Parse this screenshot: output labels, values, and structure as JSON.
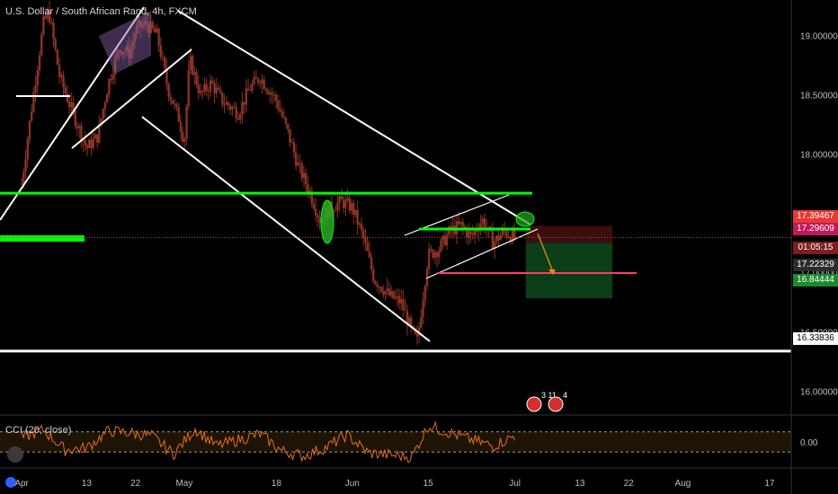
{
  "header": {
    "symbol_title": "U.S. Dollar / South African Rand, 4h, FXCM"
  },
  "indicator": {
    "title": "CCI (20, close)",
    "zero_label": "0.00"
  },
  "price_labels": {
    "high_box": "17.39467",
    "current": "17.29609",
    "countdown": "01:05:15",
    "mid": "17.22329",
    "target": "16.84444",
    "support": "16.33836"
  },
  "events": {
    "badge_a": "3",
    "badge_b": "11",
    "badge_c": "4"
  },
  "colors": {
    "background": "#000000",
    "candle": "#8a3324",
    "channel": "#ffffff",
    "resistance": "#00ff00",
    "target_line": "#ff3b6b",
    "cci_line": "#e56e1e",
    "stop_zone": "#3b0d0d",
    "profit_zone": "#0b3d16"
  },
  "chart_data": {
    "type": "line",
    "title": "U.S. Dollar / South African Rand, 4h, FXCM",
    "xlabel": "",
    "ylabel": "",
    "ylim": [
      15.8,
      19.3
    ],
    "y_ticks": [
      "19.00000",
      "18.50000",
      "18.00000",
      "17.50000",
      "17.00000",
      "16.50000",
      "16.00000"
    ],
    "x_ticks": [
      "Apr",
      "13",
      "22",
      "May",
      "18",
      "Jun",
      "15",
      "Jul",
      "13",
      "22",
      "Aug",
      "17"
    ],
    "x_tick_dates": [
      "2020-04-01",
      "2020-04-13",
      "2020-04-22",
      "2020-05-01",
      "2020-05-18",
      "2020-06-01",
      "2020-06-15",
      "2020-07-01",
      "2020-07-13",
      "2020-07-22",
      "2020-08-01",
      "2020-08-17"
    ],
    "series": [
      {
        "points": [
          [
            "2020-04-01",
            17.75
          ],
          [
            "2020-04-03",
            18.45
          ],
          [
            "2020-04-05",
            19.1
          ],
          [
            "2020-04-06",
            19.2
          ],
          [
            "2020-04-08",
            18.65
          ],
          [
            "2020-04-10",
            18.4
          ],
          [
            "2020-04-13",
            18.05
          ],
          [
            "2020-04-15",
            18.15
          ],
          [
            "2020-04-17",
            18.6
          ],
          [
            "2020-04-19",
            18.9
          ],
          [
            "2020-04-21",
            18.85
          ],
          [
            "2020-04-22",
            19.05
          ],
          [
            "2020-04-24",
            19.1
          ],
          [
            "2020-04-26",
            19.0
          ],
          [
            "2020-04-28",
            18.55
          ],
          [
            "2020-04-30",
            18.3
          ],
          [
            "2020-05-01",
            18.1
          ],
          [
            "2020-05-02",
            18.8
          ],
          [
            "2020-05-04",
            18.5
          ],
          [
            "2020-05-06",
            18.6
          ],
          [
            "2020-05-08",
            18.45
          ],
          [
            "2020-05-11",
            18.35
          ],
          [
            "2020-05-13",
            18.55
          ],
          [
            "2020-05-15",
            18.65
          ],
          [
            "2020-05-18",
            18.45
          ],
          [
            "2020-05-20",
            18.2
          ],
          [
            "2020-05-22",
            17.9
          ],
          [
            "2020-05-24",
            17.7
          ],
          [
            "2020-05-26",
            17.45
          ],
          [
            "2020-05-28",
            17.55
          ],
          [
            "2020-05-30",
            17.6
          ],
          [
            "2020-06-01",
            17.55
          ],
          [
            "2020-06-03",
            17.3
          ],
          [
            "2020-06-05",
            16.95
          ],
          [
            "2020-06-08",
            16.8
          ],
          [
            "2020-06-10",
            16.75
          ],
          [
            "2020-06-12",
            16.5
          ],
          [
            "2020-06-13",
            16.42
          ],
          [
            "2020-06-15",
            17.15
          ],
          [
            "2020-06-17",
            17.2
          ],
          [
            "2020-06-19",
            17.35
          ],
          [
            "2020-06-21",
            17.4
          ],
          [
            "2020-06-23",
            17.3
          ],
          [
            "2020-06-25",
            17.45
          ],
          [
            "2020-06-27",
            17.25
          ],
          [
            "2020-06-29",
            17.35
          ],
          [
            "2020-07-01",
            17.29
          ]
        ]
      }
    ],
    "annotations": {
      "resistance_level": 17.67,
      "current_price": 17.29609,
      "stop_level": 17.39467,
      "target_level": 16.84444,
      "support_level": 16.33836
    },
    "cci": {
      "title": "CCI (20, close)",
      "levels": [
        100,
        0,
        -100
      ],
      "ylim": [
        -250,
        250
      ],
      "values": [
        [
          "2020-04-01",
          40
        ],
        [
          "2020-04-05",
          120
        ],
        [
          "2020-04-09",
          -80
        ],
        [
          "2020-04-13",
          -60
        ],
        [
          "2020-04-17",
          110
        ],
        [
          "2020-04-21",
          90
        ],
        [
          "2020-04-25",
          60
        ],
        [
          "2020-04-29",
          -120
        ],
        [
          "2020-05-03",
          130
        ],
        [
          "2020-05-07",
          -40
        ],
        [
          "2020-05-11",
          20
        ],
        [
          "2020-05-15",
          80
        ],
        [
          "2020-05-19",
          -90
        ],
        [
          "2020-05-23",
          -140
        ],
        [
          "2020-05-27",
          -60
        ],
        [
          "2020-05-31",
          70
        ],
        [
          "2020-06-04",
          -110
        ],
        [
          "2020-06-08",
          -130
        ],
        [
          "2020-06-12",
          -150
        ],
        [
          "2020-06-15",
          160
        ],
        [
          "2020-06-19",
          90
        ],
        [
          "2020-06-23",
          20
        ],
        [
          "2020-06-27",
          -40
        ],
        [
          "2020-07-01",
          60
        ]
      ]
    },
    "grid": false,
    "legend": "none"
  }
}
